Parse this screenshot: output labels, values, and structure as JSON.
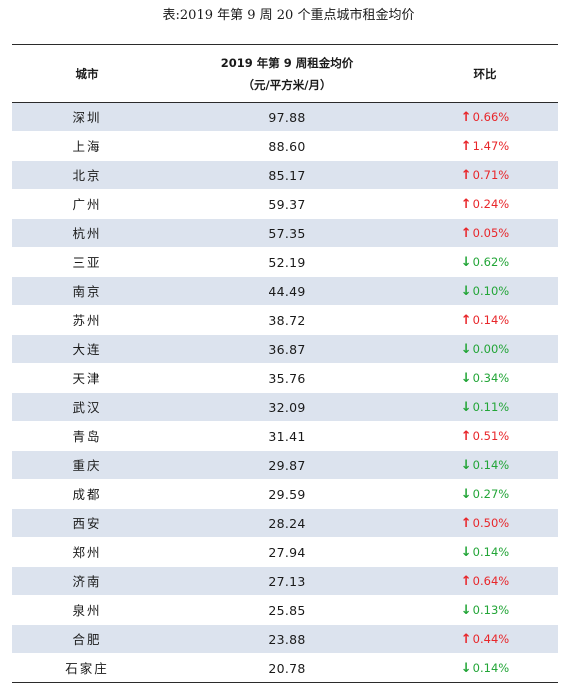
{
  "title": "表:2019 年第 9 周 20 个重点城市租金均价",
  "table": {
    "headers": {
      "city": "城市",
      "price_line1": "2019 年第 9 周租金均价",
      "price_line2": "（元/平方米/月）",
      "change": "环比"
    },
    "colors": {
      "up": "#e8262a",
      "down": "#22a537",
      "row_shade": "#dce3ee"
    },
    "rows": [
      {
        "city": "深圳",
        "price": "97.88",
        "direction": "up",
        "arrow": "↑",
        "change": "0.66%"
      },
      {
        "city": "上海",
        "price": "88.60",
        "direction": "up",
        "arrow": "↑",
        "change": "1.47%"
      },
      {
        "city": "北京",
        "price": "85.17",
        "direction": "up",
        "arrow": "↑",
        "change": "0.71%"
      },
      {
        "city": "广州",
        "price": "59.37",
        "direction": "up",
        "arrow": "↑",
        "change": "0.24%"
      },
      {
        "city": "杭州",
        "price": "57.35",
        "direction": "up",
        "arrow": "↑",
        "change": "0.05%"
      },
      {
        "city": "三亚",
        "price": "52.19",
        "direction": "down",
        "arrow": "↓",
        "change": "0.62%"
      },
      {
        "city": "南京",
        "price": "44.49",
        "direction": "down",
        "arrow": "↓",
        "change": "0.10%"
      },
      {
        "city": "苏州",
        "price": "38.72",
        "direction": "up",
        "arrow": "↑",
        "change": "0.14%"
      },
      {
        "city": "大连",
        "price": "36.87",
        "direction": "down",
        "arrow": "↓",
        "change": "0.00%"
      },
      {
        "city": "天津",
        "price": "35.76",
        "direction": "down",
        "arrow": "↓",
        "change": "0.34%"
      },
      {
        "city": "武汉",
        "price": "32.09",
        "direction": "down",
        "arrow": "↓",
        "change": "0.11%"
      },
      {
        "city": "青岛",
        "price": "31.41",
        "direction": "up",
        "arrow": "↑",
        "change": "0.51%"
      },
      {
        "city": "重庆",
        "price": "29.87",
        "direction": "down",
        "arrow": "↓",
        "change": "0.14%"
      },
      {
        "city": "成都",
        "price": "29.59",
        "direction": "down",
        "arrow": "↓",
        "change": "0.27%"
      },
      {
        "city": "西安",
        "price": "28.24",
        "direction": "up",
        "arrow": "↑",
        "change": "0.50%"
      },
      {
        "city": "郑州",
        "price": "27.94",
        "direction": "down",
        "arrow": "↓",
        "change": "0.14%"
      },
      {
        "city": "济南",
        "price": "27.13",
        "direction": "up",
        "arrow": "↑",
        "change": "0.64%"
      },
      {
        "city": "泉州",
        "price": "25.85",
        "direction": "down",
        "arrow": "↓",
        "change": "0.13%"
      },
      {
        "city": "合肥",
        "price": "23.88",
        "direction": "up",
        "arrow": "↑",
        "change": "0.44%"
      },
      {
        "city": "石家庄",
        "price": "20.78",
        "direction": "down",
        "arrow": "↓",
        "change": "0.14%"
      }
    ]
  }
}
